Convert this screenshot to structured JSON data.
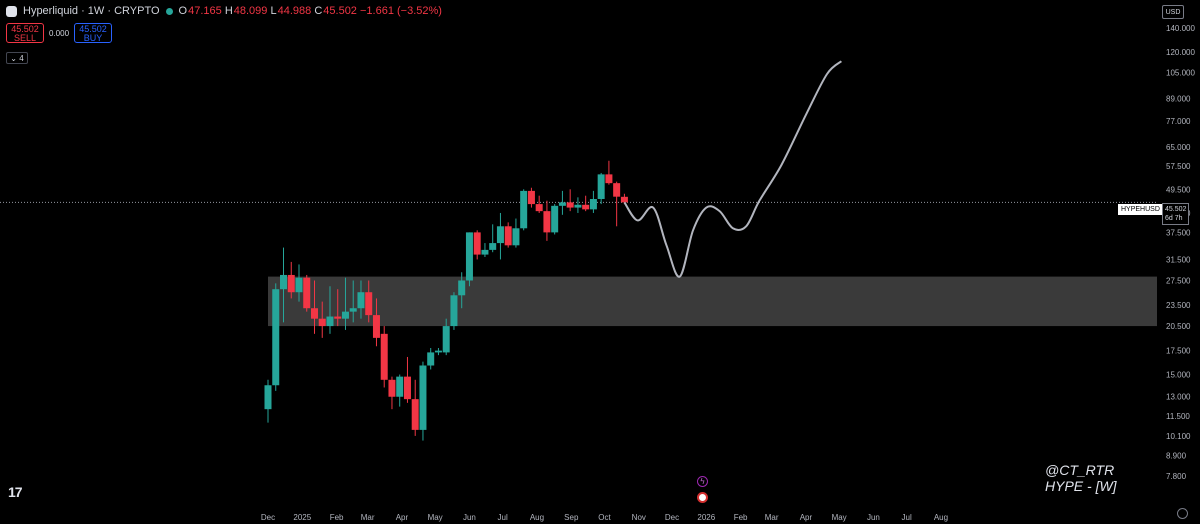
{
  "header": {
    "title": "Hyperliquid · 1W · CRYPTO",
    "open_label": "O",
    "open": "47.165",
    "high_label": "H",
    "high": "48.099",
    "low_label": "L",
    "low": "44.988",
    "close_label": "C",
    "close": "45.502",
    "change": "−1.661 (−3.52%)"
  },
  "trade": {
    "sell_price": "45.502",
    "sell_label": "SELL",
    "spread": "0.000",
    "buy_price": "45.502",
    "buy_label": "BUY"
  },
  "indicators_toggle": "4",
  "currency_button": "USD",
  "symbol_tag": "HYPEHUSD",
  "last_price_tag": "45.502",
  "countdown": "6d 7h",
  "watermark": {
    "line1": "@CT_RTR",
    "line2": "HYPE - [W]"
  },
  "brand": "17",
  "colors": {
    "up": "#26a69a",
    "down": "#f23645",
    "zone": "#3a3a3a",
    "projection": "#b2b5be"
  },
  "chart_data": {
    "type": "candlestick",
    "scale": "log",
    "price_axis_ticks": [
      "140.000",
      "120.000",
      "105.000",
      "89.000",
      "77.000",
      "65.000",
      "57.500",
      "49.500",
      "42.500",
      "37.500",
      "31.500",
      "27.500",
      "23.500",
      "20.500",
      "17.500",
      "15.000",
      "13.000",
      "11.500",
      "10.100",
      "8.900",
      "7.800"
    ],
    "time_axis_labels": [
      "Dec",
      "2025",
      "Feb",
      "Mar",
      "Apr",
      "May",
      "Jun",
      "Jul",
      "Aug",
      "Sep",
      "Oct",
      "Nov",
      "Dec",
      "2026",
      "Feb",
      "Mar",
      "Apr",
      "May",
      "Jun",
      "Jul",
      "Aug"
    ],
    "time_axis_dates": [
      "2024-12-01",
      "2025-01-01",
      "2025-02-01",
      "2025-03-01",
      "2025-04-01",
      "2025-05-01",
      "2025-06-01",
      "2025-07-01",
      "2025-08-01",
      "2025-09-01",
      "2025-10-01",
      "2025-11-01",
      "2025-12-01",
      "2026-01-01",
      "2026-02-01",
      "2026-03-01",
      "2026-04-01",
      "2026-05-01",
      "2026-06-01",
      "2026-07-01",
      "2026-08-01"
    ],
    "last_price": 45.502,
    "support_zone": {
      "low": 20.5,
      "high": 28.2,
      "from": "2024-12-01",
      "to": "2026-08-31"
    },
    "candles": [
      {
        "date": "2024-12-01",
        "o": 12.0,
        "h": 14.5,
        "l": 11.0,
        "c": 14.0
      },
      {
        "date": "2024-12-08",
        "o": 14.0,
        "h": 27.0,
        "l": 13.5,
        "c": 26.0
      },
      {
        "date": "2024-12-15",
        "o": 26.0,
        "h": 34.0,
        "l": 21.0,
        "c": 28.5
      },
      {
        "date": "2024-12-22",
        "o": 28.5,
        "h": 31.0,
        "l": 24.5,
        "c": 25.5
      },
      {
        "date": "2024-12-29",
        "o": 25.5,
        "h": 30.5,
        "l": 24.0,
        "c": 28.0
      },
      {
        "date": "2025-01-05",
        "o": 28.0,
        "h": 28.5,
        "l": 22.5,
        "c": 23.0
      },
      {
        "date": "2025-01-12",
        "o": 23.0,
        "h": 27.5,
        "l": 19.5,
        "c": 21.5
      },
      {
        "date": "2025-01-19",
        "o": 21.5,
        "h": 24.0,
        "l": 19.0,
        "c": 20.5
      },
      {
        "date": "2025-01-26",
        "o": 20.5,
        "h": 26.5,
        "l": 19.5,
        "c": 21.8
      },
      {
        "date": "2025-02-02",
        "o": 21.8,
        "h": 26.0,
        "l": 20.5,
        "c": 21.5
      },
      {
        "date": "2025-02-09",
        "o": 21.5,
        "h": 28.0,
        "l": 20.0,
        "c": 22.5
      },
      {
        "date": "2025-02-16",
        "o": 22.5,
        "h": 27.5,
        "l": 21.0,
        "c": 23.0
      },
      {
        "date": "2025-02-23",
        "o": 23.0,
        "h": 27.5,
        "l": 21.5,
        "c": 25.5
      },
      {
        "date": "2025-03-02",
        "o": 25.5,
        "h": 27.5,
        "l": 21.0,
        "c": 22.0
      },
      {
        "date": "2025-03-09",
        "o": 22.0,
        "h": 24.5,
        "l": 18.0,
        "c": 19.0
      },
      {
        "date": "2025-03-16",
        "o": 19.5,
        "h": 20.5,
        "l": 13.8,
        "c": 14.5
      },
      {
        "date": "2025-03-23",
        "o": 14.5,
        "h": 14.8,
        "l": 12.0,
        "c": 13.0
      },
      {
        "date": "2025-03-30",
        "o": 13.0,
        "h": 15.0,
        "l": 12.2,
        "c": 14.8
      },
      {
        "date": "2025-04-06",
        "o": 14.8,
        "h": 16.8,
        "l": 12.5,
        "c": 12.8
      },
      {
        "date": "2025-04-13",
        "o": 12.8,
        "h": 14.5,
        "l": 10.1,
        "c": 10.5
      },
      {
        "date": "2025-04-20",
        "o": 10.5,
        "h": 16.3,
        "l": 9.8,
        "c": 15.9
      },
      {
        "date": "2025-04-27",
        "o": 15.9,
        "h": 17.8,
        "l": 15.5,
        "c": 17.3
      },
      {
        "date": "2025-05-04",
        "o": 17.3,
        "h": 17.8,
        "l": 17.0,
        "c": 17.5
      },
      {
        "date": "2025-05-11",
        "o": 17.3,
        "h": 21.5,
        "l": 17.0,
        "c": 20.5
      },
      {
        "date": "2025-05-18",
        "o": 20.5,
        "h": 25.5,
        "l": 20.0,
        "c": 25.0
      },
      {
        "date": "2025-05-25",
        "o": 25.0,
        "h": 29.0,
        "l": 23.0,
        "c": 27.5
      },
      {
        "date": "2025-06-01",
        "o": 27.5,
        "h": 37.5,
        "l": 26.5,
        "c": 37.5
      },
      {
        "date": "2025-06-08",
        "o": 37.5,
        "h": 38.0,
        "l": 31.5,
        "c": 32.5
      },
      {
        "date": "2025-06-15",
        "o": 32.5,
        "h": 35.0,
        "l": 32.0,
        "c": 33.5
      },
      {
        "date": "2025-06-22",
        "o": 33.5,
        "h": 39.5,
        "l": 33.0,
        "c": 35.0
      },
      {
        "date": "2025-06-29",
        "o": 35.0,
        "h": 42.5,
        "l": 31.5,
        "c": 39.0
      },
      {
        "date": "2025-07-06",
        "o": 39.0,
        "h": 40.0,
        "l": 34.0,
        "c": 34.5
      },
      {
        "date": "2025-07-13",
        "o": 34.5,
        "h": 41.0,
        "l": 34.0,
        "c": 38.5
      },
      {
        "date": "2025-07-20",
        "o": 38.5,
        "h": 49.5,
        "l": 38.0,
        "c": 49.0
      },
      {
        "date": "2025-07-27",
        "o": 49.0,
        "h": 50.0,
        "l": 44.0,
        "c": 45.0
      },
      {
        "date": "2025-08-03",
        "o": 45.0,
        "h": 47.5,
        "l": 42.5,
        "c": 43.0
      },
      {
        "date": "2025-08-10",
        "o": 43.0,
        "h": 46.0,
        "l": 35.5,
        "c": 37.5
      },
      {
        "date": "2025-08-17",
        "o": 37.5,
        "h": 45.0,
        "l": 37.0,
        "c": 44.5
      },
      {
        "date": "2025-08-24",
        "o": 44.5,
        "h": 49.0,
        "l": 42.0,
        "c": 45.5
      },
      {
        "date": "2025-08-31",
        "o": 45.5,
        "h": 49.5,
        "l": 43.0,
        "c": 44.0
      },
      {
        "date": "2025-09-07",
        "o": 44.0,
        "h": 47.0,
        "l": 42.5,
        "c": 44.8
      },
      {
        "date": "2025-09-14",
        "o": 44.8,
        "h": 47.5,
        "l": 43.0,
        "c": 43.5
      },
      {
        "date": "2025-09-21",
        "o": 43.5,
        "h": 49.0,
        "l": 42.5,
        "c": 46.5
      },
      {
        "date": "2025-09-28",
        "o": 46.5,
        "h": 55.0,
        "l": 45.0,
        "c": 54.5
      },
      {
        "date": "2025-10-05",
        "o": 54.5,
        "h": 59.5,
        "l": 51.0,
        "c": 51.5
      },
      {
        "date": "2025-10-12",
        "o": 51.5,
        "h": 52.0,
        "l": 39.0,
        "c": 47.2
      },
      {
        "date": "2025-10-19",
        "o": 47.165,
        "h": 48.099,
        "l": 44.988,
        "c": 45.502
      }
    ],
    "projection_path": [
      {
        "date": "2025-10-19",
        "price": 45.5
      },
      {
        "date": "2025-10-31",
        "price": 40.5
      },
      {
        "date": "2025-11-14",
        "price": 44.0
      },
      {
        "date": "2025-11-26",
        "price": 34.5
      },
      {
        "date": "2025-12-08",
        "price": 28.2
      },
      {
        "date": "2025-12-20",
        "price": 38.0
      },
      {
        "date": "2026-01-01",
        "price": 44.0
      },
      {
        "date": "2026-01-13",
        "price": 43.0
      },
      {
        "date": "2026-01-25",
        "price": 38.5
      },
      {
        "date": "2026-02-06",
        "price": 39.0
      },
      {
        "date": "2026-02-18",
        "price": 46.0
      },
      {
        "date": "2026-03-10",
        "price": 58.0
      },
      {
        "date": "2026-04-01",
        "price": 80.0
      },
      {
        "date": "2026-04-20",
        "price": 104.0
      },
      {
        "date": "2026-05-03",
        "price": 113.0
      }
    ]
  }
}
